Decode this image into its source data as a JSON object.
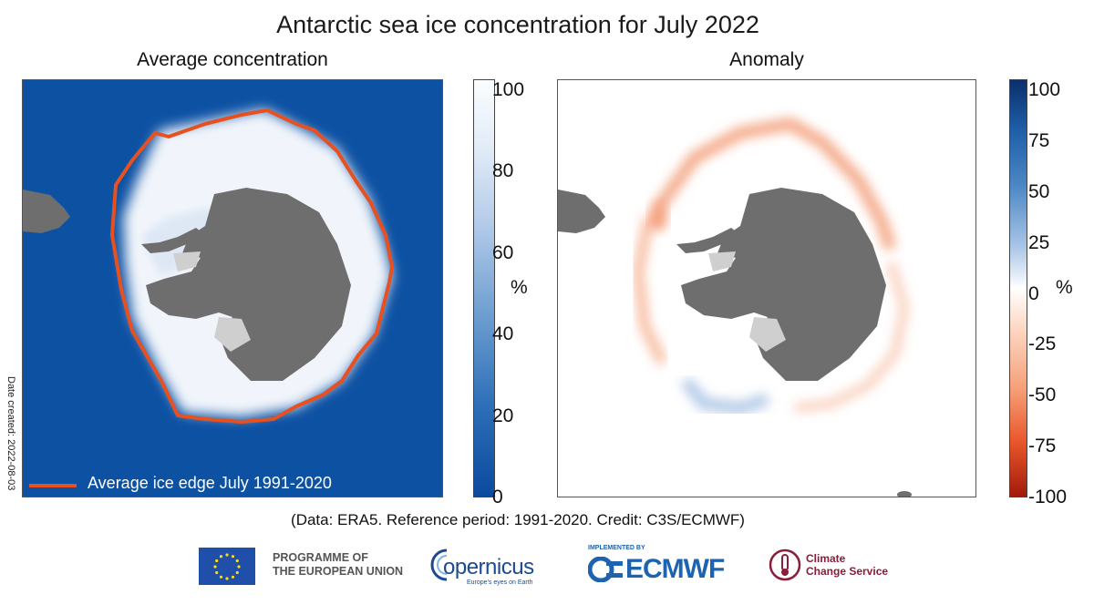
{
  "title": "Antarctic sea ice concentration for July 2022",
  "left_panel": {
    "subtitle": "Average concentration",
    "legend_label": "Average ice edge July 1991-2020",
    "colors": {
      "ocean": "#0d51a3",
      "land": "#6e6e6e",
      "ice": "#f4f7fb",
      "edge_line": "#e8501f"
    },
    "colorbar": {
      "unit": "%",
      "ticks": [
        "100",
        "80",
        "60",
        "40",
        "20",
        "0"
      ],
      "tick_values": [
        100,
        80,
        60,
        40,
        20,
        0
      ],
      "range": [
        0,
        100
      ]
    }
  },
  "right_panel": {
    "subtitle": "Anomaly",
    "colors": {
      "background": "#ffffff",
      "land": "#6e6e6e",
      "negative": "#f07a4a",
      "positive": "#8fb1dc"
    },
    "colorbar": {
      "unit": "%",
      "ticks": [
        "100",
        "75",
        "50",
        "25",
        "0",
        "-25",
        "-50",
        "-75",
        "-100"
      ],
      "tick_values": [
        100,
        75,
        50,
        25,
        0,
        -25,
        -50,
        -75,
        -100
      ],
      "range": [
        -100,
        100
      ]
    }
  },
  "date_created": "Date created: 2022-08-03",
  "credits": "(Data: ERA5.  Reference period: 1991-2020.  Credit: C3S/ECMWF)",
  "logos": {
    "eu_line1": "PROGRAMME OF",
    "eu_line2": "THE EUROPEAN UNION",
    "copernicus": "opernicus",
    "copernicus_tagline": "Europe's eyes on Earth",
    "ecmwf_implemented": "IMPLEMENTED BY",
    "ecmwf": "ECMWF",
    "c3s_line1": "Climate",
    "c3s_line2": "Change Service"
  }
}
